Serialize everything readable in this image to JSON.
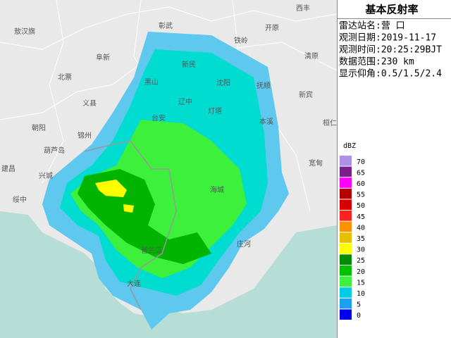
{
  "map": {
    "places": [
      "敖汉旗",
      "彰武",
      "西丰",
      "开原",
      "铁岭",
      "阜新",
      "北票",
      "新民",
      "清原",
      "沈阳",
      "抚顺",
      "黑山",
      "义县",
      "辽中",
      "灯塔",
      "新宾",
      "朝阳",
      "本溪",
      "桓仁",
      "锦州",
      "台安",
      "葫芦岛",
      "建昌",
      "兴城",
      "宽甸",
      "绥中",
      "海城",
      "庄河",
      "普兰店",
      "大连"
    ]
  },
  "panel": {
    "title": "基本反射率",
    "station": "雷达站名:营 口",
    "date": "观测日期:2019-11-17",
    "time": "观测时间:20:25:29BJT",
    "range": "数据范围:230 km",
    "elevation": "显示仰角:0.5/1.5/2.4"
  },
  "legend": {
    "unit": "dBZ",
    "levels": [
      {
        "value": 70,
        "color": "#ae90e6"
      },
      {
        "value": 65,
        "color": "#7a1f8c"
      },
      {
        "value": 60,
        "color": "#ff00ff"
      },
      {
        "value": 55,
        "color": "#b40000"
      },
      {
        "value": 50,
        "color": "#d80000"
      },
      {
        "value": 45,
        "color": "#ff2020"
      },
      {
        "value": 40,
        "color": "#ff9000"
      },
      {
        "value": 35,
        "color": "#e6c000"
      },
      {
        "value": 30,
        "color": "#ffff00"
      },
      {
        "value": 25,
        "color": "#008c00"
      },
      {
        "value": 20,
        "color": "#00c000"
      },
      {
        "value": 15,
        "color": "#3cf03c"
      },
      {
        "value": 10,
        "color": "#00cce6"
      },
      {
        "value": 5,
        "color": "#1ea0f0"
      },
      {
        "value": 0,
        "color": "#0000f0"
      }
    ]
  }
}
